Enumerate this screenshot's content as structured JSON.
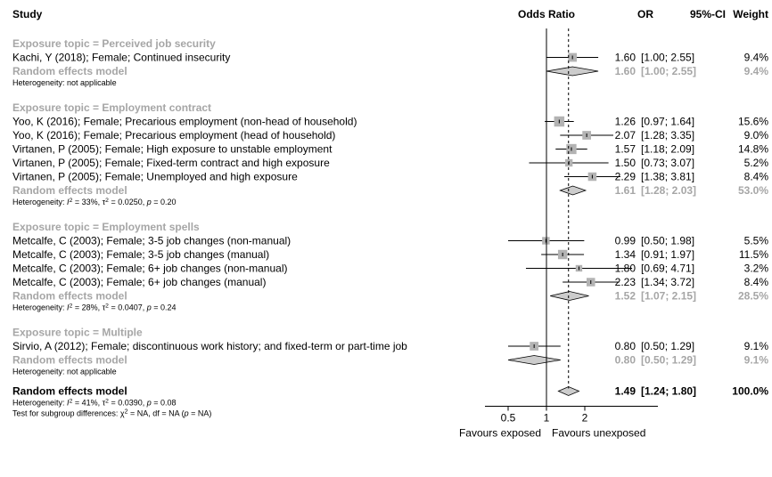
{
  "chart_data": {
    "type": "forest",
    "headers": {
      "study": "Study",
      "odds_ratio": "Odds Ratio",
      "or": "OR",
      "ci": "95%-CI",
      "weight": "Weight"
    },
    "x_axis": {
      "scale": "log",
      "ticks": [
        0.5,
        1,
        2
      ],
      "tick_labels": [
        "0.5",
        "1",
        "2"
      ],
      "reference_line": 1,
      "overall_dashed_line": 1.49,
      "left_label": "Favours exposed",
      "right_label": "Favours unexposed"
    },
    "groups": [
      {
        "title": "Exposure topic = Perceived job security",
        "studies": [
          {
            "label": "Kachi, Y (2018); Female; Continued insecurity",
            "or": 1.6,
            "lo": 1.0,
            "hi": 2.55,
            "or_text": "1.60",
            "ci_text": "[1.00; 2.55]",
            "weight_text": "9.4%",
            "weight": 9.4
          }
        ],
        "pooled": {
          "label": "Random effects model",
          "or": 1.6,
          "lo": 1.0,
          "hi": 2.55,
          "or_text": "1.60",
          "ci_text": "[1.00; 2.55]",
          "weight_text": "9.4%"
        },
        "heterogeneity": {
          "plain": "Heterogeneity: not applicable"
        }
      },
      {
        "title": "Exposure topic = Employment contract",
        "studies": [
          {
            "label": "Yoo, K (2016); Female; Precarious employment (non-head of household)",
            "or": 1.26,
            "lo": 0.97,
            "hi": 1.64,
            "or_text": "1.26",
            "ci_text": "[0.97; 1.64]",
            "weight_text": "15.6%",
            "weight": 15.6
          },
          {
            "label": "Yoo, K (2016); Female; Precarious employment (head of household)",
            "or": 2.07,
            "lo": 1.28,
            "hi": 3.35,
            "or_text": "2.07",
            "ci_text": "[1.28; 3.35]",
            "weight_text": "9.0%",
            "weight": 9.0
          },
          {
            "label": "Virtanen, P (2005); Female; High exposure to unstable employment",
            "or": 1.57,
            "lo": 1.18,
            "hi": 2.09,
            "or_text": "1.57",
            "ci_text": "[1.18; 2.09]",
            "weight_text": "14.8%",
            "weight": 14.8
          },
          {
            "label": "Virtanen, P (2005); Female; Fixed-term contract and high exposure",
            "or": 1.5,
            "lo": 0.73,
            "hi": 3.07,
            "or_text": "1.50",
            "ci_text": "[0.73; 3.07]",
            "weight_text": "5.2%",
            "weight": 5.2
          },
          {
            "label": "Virtanen, P (2005); Female; Unemployed and high exposure",
            "or": 2.29,
            "lo": 1.38,
            "hi": 3.81,
            "or_text": "2.29",
            "ci_text": "[1.38; 3.81]",
            "weight_text": "8.4%",
            "weight": 8.4
          }
        ],
        "pooled": {
          "label": "Random effects model",
          "or": 1.61,
          "lo": 1.28,
          "hi": 2.03,
          "or_text": "1.61",
          "ci_text": "[1.28; 2.03]",
          "weight_text": "53.0%"
        },
        "heterogeneity": {
          "i2": "33%",
          "tau2": "0.0250",
          "p": "0.20"
        }
      },
      {
        "title": "Exposure topic = Employment spells",
        "studies": [
          {
            "label": "Metcalfe, C (2003); Female; 3-5 job changes (non-manual)",
            "or": 0.99,
            "lo": 0.5,
            "hi": 1.98,
            "or_text": "0.99",
            "ci_text": "[0.50; 1.98]",
            "weight_text": "5.5%",
            "weight": 5.5
          },
          {
            "label": "Metcalfe, C (2003); Female; 3-5 job changes (manual)",
            "or": 1.34,
            "lo": 0.91,
            "hi": 1.97,
            "or_text": "1.34",
            "ci_text": "[0.91; 1.97]",
            "weight_text": "11.5%",
            "weight": 11.5
          },
          {
            "label": "Metcalfe, C (2003); Female; 6+ job changes (non-manual)",
            "or": 1.8,
            "lo": 0.69,
            "hi": 4.71,
            "or_text": "1.80",
            "ci_text": "[0.69; 4.71]",
            "weight_text": "3.2%",
            "weight": 3.2
          },
          {
            "label": "Metcalfe, C (2003); Female; 6+ job changes (manual)",
            "or": 2.23,
            "lo": 1.34,
            "hi": 3.72,
            "or_text": "2.23",
            "ci_text": "[1.34; 3.72]",
            "weight_text": "8.4%",
            "weight": 8.4
          }
        ],
        "pooled": {
          "label": "Random effects model",
          "or": 1.52,
          "lo": 1.07,
          "hi": 2.15,
          "or_text": "1.52",
          "ci_text": "[1.07; 2.15]",
          "weight_text": "28.5%"
        },
        "heterogeneity": {
          "i2": "28%",
          "tau2": "0.0407",
          "p": "0.24"
        }
      },
      {
        "title": "Exposure topic = Multiple",
        "studies": [
          {
            "label": "Sirvio, A (2012); Female; discontinuous work history; and fixed-term or  part-time job",
            "or": 0.8,
            "lo": 0.5,
            "hi": 1.29,
            "or_text": "0.80",
            "ci_text": "[0.50; 1.29]",
            "weight_text": "9.1%",
            "weight": 9.1
          }
        ],
        "pooled": {
          "label": "Random effects model",
          "or": 0.8,
          "lo": 0.5,
          "hi": 1.29,
          "or_text": "0.80",
          "ci_text": "[0.50; 1.29]",
          "weight_text": "9.1%"
        },
        "heterogeneity": {
          "plain": "Heterogeneity: not applicable"
        }
      }
    ],
    "overall": {
      "label": "Random effects model",
      "or": 1.49,
      "lo": 1.24,
      "hi": 1.8,
      "or_text": "1.49",
      "ci_text": "[1.24; 1.80]",
      "weight_text": "100.0%",
      "heterogeneity": {
        "i2": "41%",
        "tau2": "0.0390",
        "p": "0.08"
      },
      "subgroup_test": {
        "chi2": "NA",
        "df": "NA",
        "p": "NA"
      }
    },
    "colors": {
      "text": "#000000",
      "pooled_text": "#a6a6a6",
      "study_box": "#b3b3b3",
      "pooled_diamond": "#cccccc",
      "overall_diamond": "#cccccc",
      "lines": "#000000"
    }
  }
}
